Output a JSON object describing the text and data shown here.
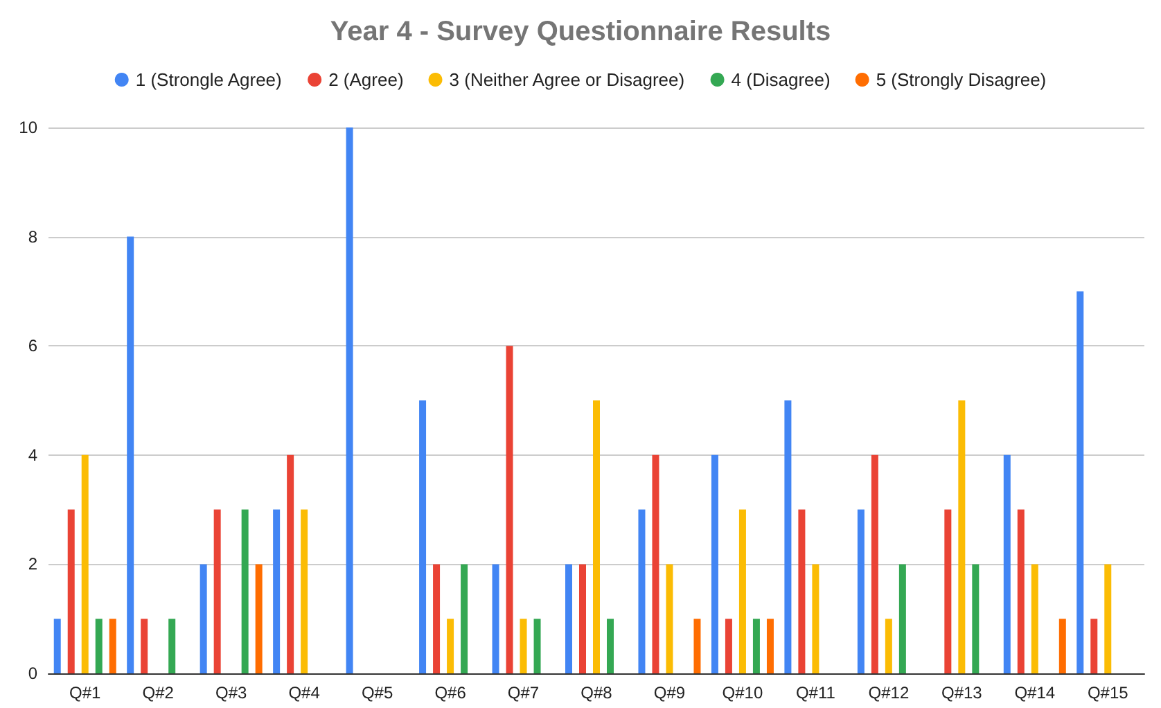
{
  "chart_data": {
    "type": "bar",
    "title": "Year 4 - Survey Questionnaire Results",
    "categories": [
      "Q#1",
      "Q#2",
      "Q#3",
      "Q#4",
      "Q#5",
      "Q#6",
      "Q#7",
      "Q#8",
      "Q#9",
      "Q#10",
      "Q#11",
      "Q#12",
      "Q#13",
      "Q#14",
      "Q#15"
    ],
    "series": [
      {
        "name": "1 (Strongle Agree)",
        "color": "#4285f4",
        "values": [
          1,
          8,
          2,
          3,
          10,
          5,
          2,
          2,
          3,
          4,
          5,
          3,
          0,
          4,
          7
        ]
      },
      {
        "name": "2 (Agree)",
        "color": "#ea4335",
        "values": [
          3,
          1,
          3,
          4,
          0,
          2,
          6,
          2,
          4,
          1,
          3,
          4,
          3,
          3,
          1
        ]
      },
      {
        "name": "3 (Neither Agree or Disagree)",
        "color": "#fbbc04",
        "values": [
          4,
          0,
          0,
          3,
          0,
          1,
          1,
          5,
          2,
          3,
          2,
          1,
          5,
          2,
          2
        ]
      },
      {
        "name": "4 (Disagree)",
        "color": "#34a853",
        "values": [
          1,
          1,
          3,
          0,
          0,
          2,
          1,
          1,
          0,
          1,
          0,
          2,
          2,
          0,
          0
        ]
      },
      {
        "name": "5 (Strongly Disagree)",
        "color": "#ff6d01",
        "values": [
          1,
          0,
          2,
          0,
          0,
          0,
          0,
          0,
          1,
          1,
          0,
          0,
          0,
          1,
          0
        ]
      }
    ],
    "ylim": [
      0,
      10
    ],
    "yticks": [
      0,
      2,
      4,
      6,
      8,
      10
    ],
    "grid": "y",
    "legend": "top"
  }
}
